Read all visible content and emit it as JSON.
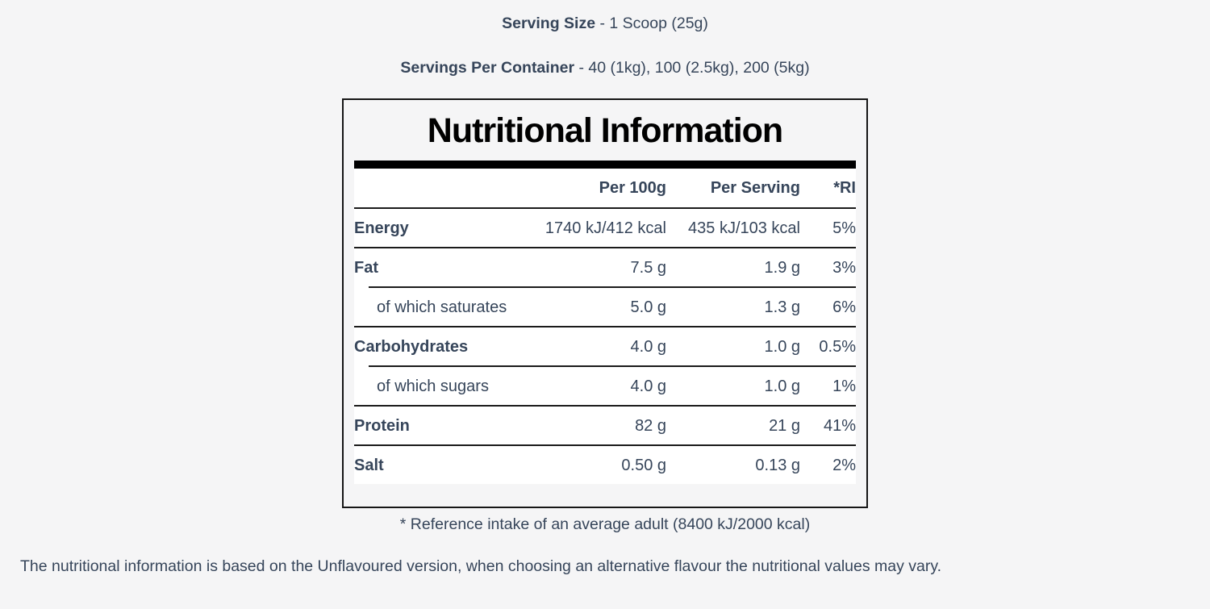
{
  "page": {
    "serving_size_label": "Serving Size",
    "serving_size_value": " - 1 Scoop (25g)",
    "servings_per_container_label": "Servings Per Container",
    "servings_per_container_value": " - 40 (1kg), 100 (2.5kg), 200 (5kg)",
    "disclaimer": "The nutritional information is based on the Unflavoured version, when choosing an alternative flavour the nutritional values may vary."
  },
  "panel": {
    "title": "Nutritional Information",
    "footnote": "* Reference intake of an average adult (8400 kJ/2000 kcal)",
    "columns": {
      "per_100g": "Per 100g",
      "per_serving": "Per Serving",
      "ri": "*RI"
    },
    "rows": [
      {
        "label": "Energy",
        "per_100g": "1740 kJ/412 kcal",
        "per_serving": "435 kJ/103 kcal",
        "ri": "5%"
      },
      {
        "label": "Fat",
        "per_100g": "7.5 g",
        "per_serving": "1.9 g",
        "ri": "3%"
      },
      {
        "label": "of which saturates",
        "per_100g": "5.0 g",
        "per_serving": "1.3 g",
        "ri": "6%"
      },
      {
        "label": "Carbohydrates",
        "per_100g": "4.0 g",
        "per_serving": "1.0 g",
        "ri": "0.5%"
      },
      {
        "label": "of which sugars",
        "per_100g": "4.0 g",
        "per_serving": "1.0 g",
        "ri": "1%"
      },
      {
        "label": "Protein",
        "per_100g": "82 g",
        "per_serving": "21 g",
        "ri": "41%"
      },
      {
        "label": "Salt",
        "per_100g": "0.50 g",
        "per_serving": "0.13 g",
        "ri": "2%"
      }
    ]
  },
  "colors": {
    "page_background": "#f5f5f6",
    "text": "#36455a",
    "title": "#000000",
    "bar": "#000000"
  }
}
